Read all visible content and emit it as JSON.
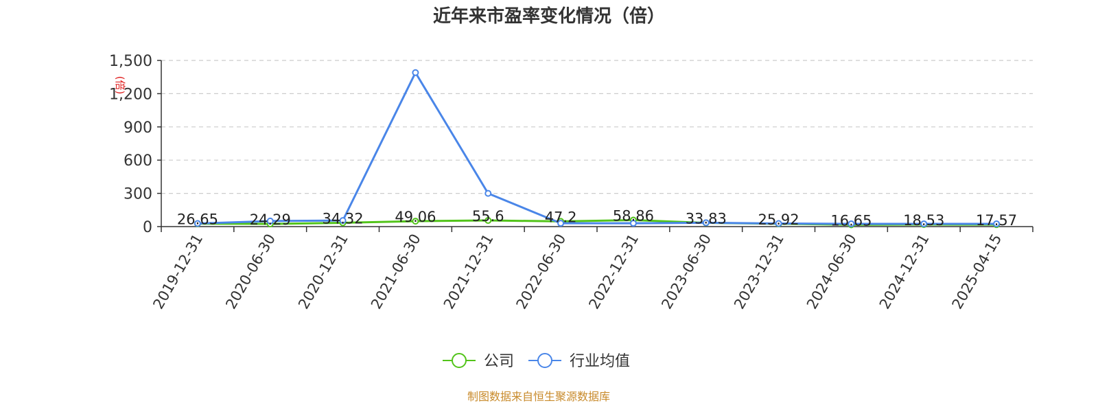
{
  "chart_data": {
    "type": "line",
    "title": "近年来市盈率变化情况（倍）",
    "ylabel": "(倍)",
    "ylim": [
      0,
      1500
    ],
    "yticks": [
      0,
      300,
      600,
      900,
      1200,
      1500
    ],
    "ytick_labels": [
      "0",
      "300",
      "600",
      "900",
      "1,200",
      "1,500"
    ],
    "categories": [
      "2019-12-31",
      "2020-06-30",
      "2020-12-31",
      "2021-06-30",
      "2021-12-31",
      "2022-06-30",
      "2022-12-31",
      "2023-06-30",
      "2023-12-31",
      "2024-06-30",
      "2024-12-31",
      "2025-04-15"
    ],
    "series": [
      {
        "name": "公司",
        "color": "#52c41a",
        "values": [
          26.65,
          24.29,
          34.32,
          49.06,
          55.6,
          47.2,
          58.86,
          33.83,
          25.92,
          16.65,
          18.53,
          17.57
        ],
        "labels": [
          "26.65",
          "24.29",
          "34.32",
          "49.06",
          "55.6",
          "47.2",
          "58.86",
          "33.83",
          "25.92",
          "16.65",
          "18.53",
          "17.57"
        ]
      },
      {
        "name": "行业均值",
        "color": "#4a86e8",
        "values": [
          28,
          50,
          55,
          1390,
          300,
          30,
          30,
          35,
          28,
          25,
          25,
          25
        ]
      }
    ],
    "grid": true,
    "legend_position": "bottom-center"
  },
  "source": "制图数据来自恒生聚源数据库"
}
